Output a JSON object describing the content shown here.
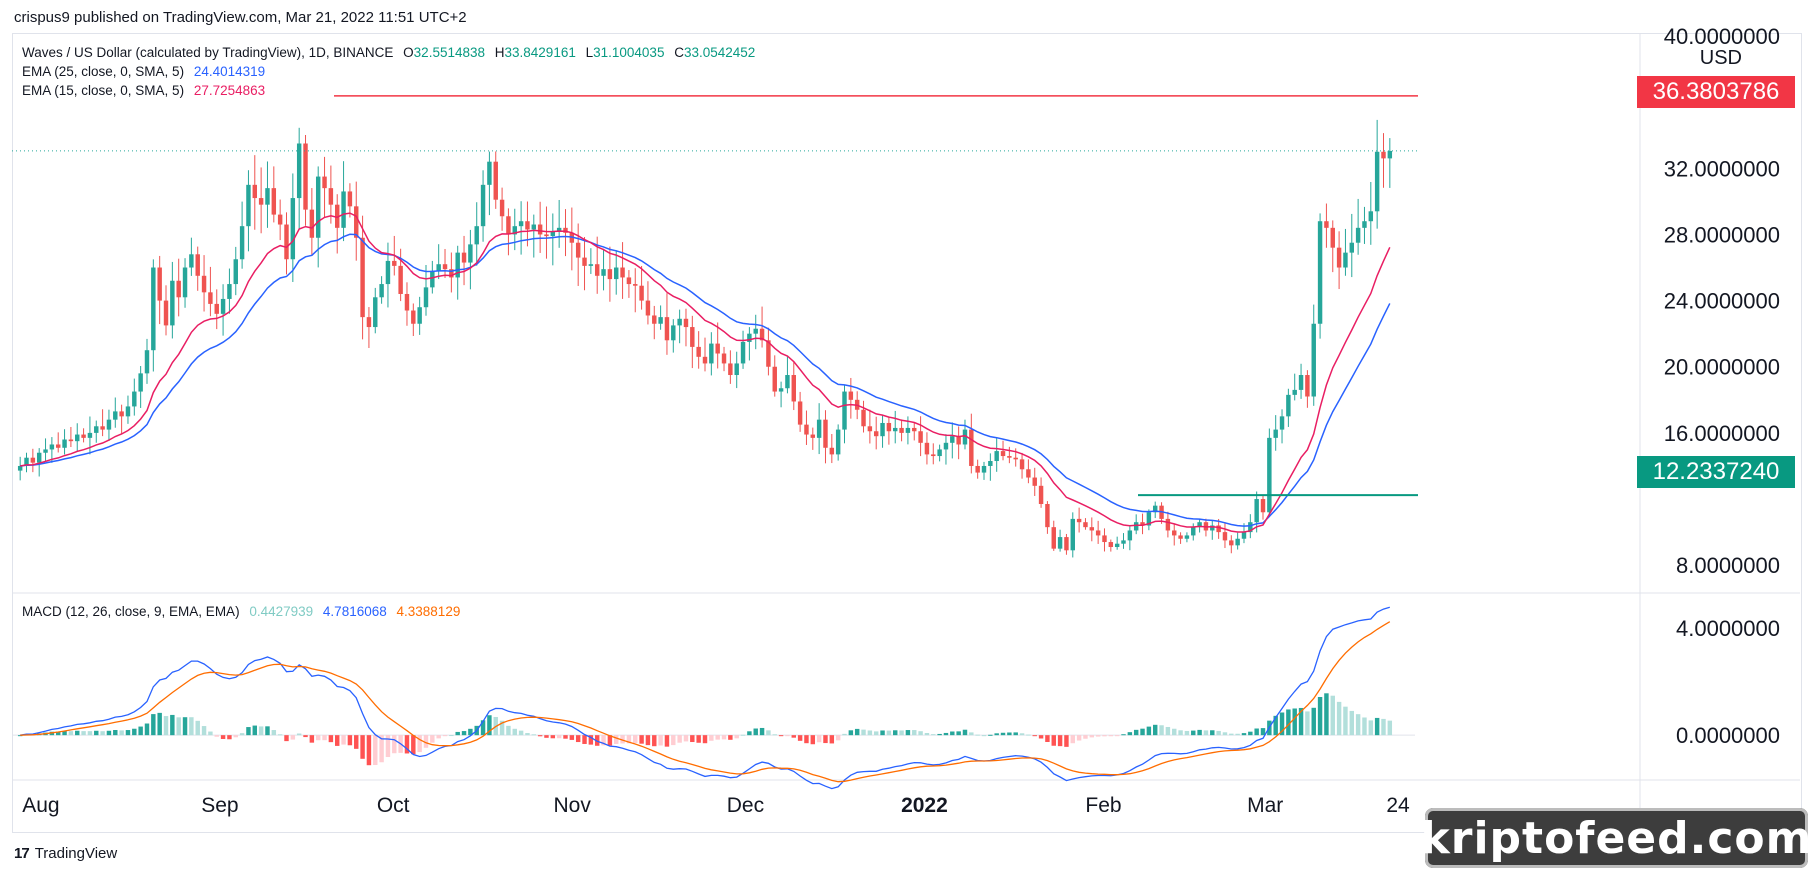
{
  "header": {
    "publisher_line": "crispus9 published on TradingView.com, Mar 21, 2022 11:51 UTC+2"
  },
  "legend": {
    "symbol_title": "Waves / US Dollar (calculated by TradingView), 1D, BINANCE",
    "ohlc": {
      "o_label": "O",
      "o": "32.5514838",
      "h_label": "H",
      "h": "33.8429161",
      "l_label": "L",
      "l": "31.1004035",
      "c_label": "C",
      "c": "33.0542452"
    },
    "ema25_label": "EMA (25, close, 0, SMA, 5)",
    "ema25_value": "24.4014319",
    "ema15_label": "EMA (15, close, 0, SMA, 5)",
    "ema15_value": "27.7254863",
    "macd_label": "MACD (12, 26, close, 9, EMA, EMA)",
    "macd_hist_value": "0.4427939",
    "macd_value": "4.7816068",
    "macd_signal_value": "4.3388129"
  },
  "axis": {
    "currency": "USD",
    "price_ticks": [
      "40.0000000",
      "32.0000000",
      "28.0000000",
      "24.0000000",
      "20.0000000",
      "16.0000000",
      "8.0000000"
    ],
    "macd_ticks": [
      "4.0000000",
      "0.0000000"
    ],
    "time_ticks": [
      "Aug",
      "Sep",
      "Oct",
      "Nov",
      "Dec",
      "2022",
      "Feb",
      "Mar",
      "24"
    ]
  },
  "levels": {
    "resistance_label": "36.3803786",
    "support_label": "12.2337240"
  },
  "footer": {
    "brand": "TradingView",
    "watermark": "kriptofeed.com"
  },
  "colors": {
    "up": "#26a69a",
    "down": "#ef5350",
    "ema25": "#2962ff",
    "ema15": "#e91e63",
    "macd": "#2962ff",
    "signal": "#ff6d00",
    "resistance": "#f23645",
    "support": "#089981"
  },
  "chart_data": {
    "type": "candlestick",
    "title": "Waves / US Dollar (calculated by TradingView), 1D, BINANCE",
    "x_range": [
      "2021-07-27",
      "2022-03-24"
    ],
    "y_range": [
      6.5,
      40
    ],
    "levels": [
      36.3803786,
      12.233724
    ],
    "closes": [
      14.0,
      14.5,
      14.2,
      14.8,
      15.0,
      15.3,
      15.1,
      15.6,
      15.5,
      15.9,
      15.7,
      16.0,
      16.4,
      16.2,
      16.8,
      17.3,
      17.0,
      17.6,
      18.5,
      19.6,
      21.0,
      26.0,
      24.0,
      22.5,
      25.2,
      24.2,
      26.0,
      26.8,
      25.5,
      24.5,
      23.8,
      23.2,
      24.1,
      25.0,
      26.5,
      28.5,
      31.0,
      30.2,
      29.8,
      30.8,
      29.2,
      28.6,
      26.5,
      30.2,
      33.5,
      29.5,
      27.8,
      31.5,
      30.8,
      29.8,
      28.4,
      30.6,
      29.7,
      27.8,
      23.0,
      22.4,
      24.2,
      25.0,
      26.4,
      26.1,
      24.4,
      23.4,
      22.6,
      23.6,
      24.8,
      25.8,
      26.2,
      25.9,
      25.4,
      26.9,
      26.3,
      27.4,
      28.5,
      31.0,
      32.4,
      30.1,
      29.1,
      28.0,
      28.5,
      28.8,
      28.3,
      28.6,
      28.0,
      27.9,
      28.2,
      28.4,
      28.1,
      27.5,
      26.6,
      26.1,
      26.2,
      25.5,
      25.9,
      25.3,
      26.0,
      25.4,
      25.0,
      24.9,
      24.0,
      23.1,
      22.6,
      23.0,
      21.6,
      22.5,
      22.9,
      22.4,
      21.2,
      20.6,
      20.2,
      21.4,
      20.8,
      20.2,
      19.5,
      20.2,
      21.5,
      22.0,
      22.3,
      21.6,
      20.0,
      18.5,
      18.7,
      19.5,
      17.9,
      16.5,
      15.9,
      15.7,
      16.8,
      15.1,
      14.7,
      16.2,
      18.5,
      18.0,
      17.4,
      16.4,
      16.1,
      15.8,
      16.6,
      16.1,
      16.3,
      16.0,
      16.3,
      16.1,
      15.4,
      14.7,
      14.6,
      15.0,
      15.4,
      15.8,
      15.3,
      16.2,
      14.0,
      13.6,
      14.0,
      14.3,
      14.9,
      14.6,
      14.5,
      14.4,
      13.8,
      13.3,
      12.8,
      11.7,
      10.3,
      9.0,
      9.7,
      8.9,
      10.8,
      10.6,
      10.3,
      10.1,
      9.8,
      9.4,
      9.1,
      9.3,
      9.5,
      10.1,
      10.6,
      10.4,
      11.2,
      11.6,
      10.8,
      10.1,
      9.8,
      9.6,
      9.8,
      10.3,
      10.6,
      10.1,
      10.4,
      10.0,
      9.5,
      9.2,
      9.6,
      10.0,
      10.6,
      12.0,
      11.2,
      15.7,
      16.2,
      17.0,
      18.3,
      18.6,
      19.5,
      18.2,
      22.6,
      28.8,
      28.4,
      27.2,
      26.0,
      26.9,
      27.5,
      28.4,
      28.8,
      29.4,
      33.0,
      32.6,
      33.05
    ],
    "ema15_last": 27.7254863,
    "ema25_last": 24.4014319,
    "macd_last": {
      "hist": 0.4427939,
      "macd": 4.7816068,
      "signal": 4.3388129
    },
    "macd_range": [
      -1.6,
      5.2
    ]
  }
}
